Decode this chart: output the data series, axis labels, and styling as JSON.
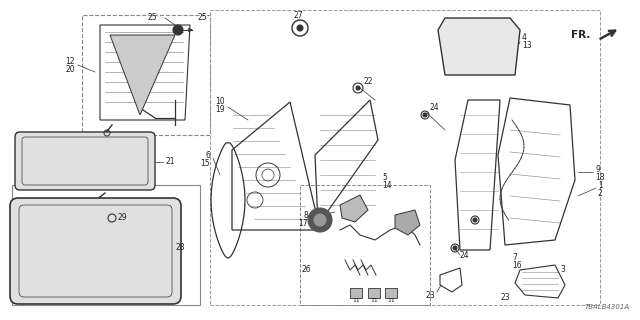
{
  "bg_color": "#ffffff",
  "line_color": "#333333",
  "text_color": "#222222",
  "diagram_code": "TBALB4301A",
  "fig_w": 6.4,
  "fig_h": 3.2,
  "dpi": 100
}
